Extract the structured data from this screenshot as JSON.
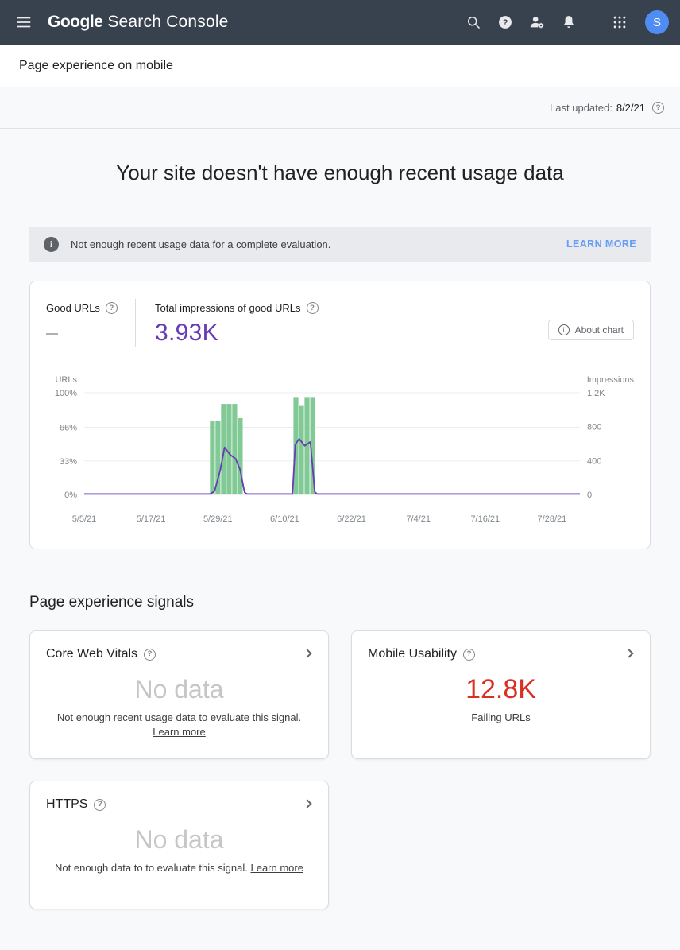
{
  "colors": {
    "header_bg": "#37424e",
    "link_blue": "#669df6",
    "impressions_purple": "#673ab7",
    "bar_green": "#81c995",
    "failing_red": "#d93025",
    "no_data_gray": "#c4c7c5"
  },
  "header": {
    "logo_google": "Google",
    "logo_product": "Search Console",
    "avatar_letter": "S",
    "icons": [
      "menu-icon",
      "search-icon",
      "help-icon",
      "user-settings-icon",
      "notifications-icon",
      "apps-grid-icon"
    ]
  },
  "subheader": {
    "title": "Page experience on mobile"
  },
  "updated": {
    "label": "Last updated:",
    "value": "8/2/21"
  },
  "main_heading": "Your site doesn't have enough recent usage data",
  "banner": {
    "message": "Not enough recent usage data for a complete evaluation.",
    "action_label": "LEARN MORE"
  },
  "chart_card": {
    "good_urls_label": "Good URLs",
    "good_urls_value": "—",
    "impressions_label": "Total impressions of good URLs",
    "impressions_value": "3.93K",
    "about_chart_label": "About chart"
  },
  "chart_data": {
    "type": "bar+line",
    "title": "Good URLs % and impressions over time",
    "x_range_days": [
      0,
      89
    ],
    "x_tick_days": [
      0,
      12,
      24,
      36,
      48,
      60,
      72,
      84
    ],
    "x_tick_labels": [
      "5/5/21",
      "5/17/21",
      "5/29/21",
      "6/10/21",
      "6/22/21",
      "7/4/21",
      "7/16/21",
      "7/28/21"
    ],
    "left_axis": {
      "label": "URLs",
      "range": [
        0,
        100
      ],
      "ticks": [
        {
          "pct": 100,
          "label": "100%"
        },
        {
          "pct": 66,
          "label": "66%"
        },
        {
          "pct": 33,
          "label": "33%"
        },
        {
          "pct": 0,
          "label": "0%"
        }
      ]
    },
    "right_axis": {
      "label": "Impressions",
      "range": [
        0,
        1200
      ],
      "ticks": [
        {
          "value": 1200,
          "label": "1.2K"
        },
        {
          "value": 800,
          "label": "800"
        },
        {
          "value": 400,
          "label": "400"
        },
        {
          "value": 0,
          "label": "0"
        }
      ]
    },
    "bars": {
      "name": "Good URLs %",
      "color": "#81c995",
      "points": [
        {
          "day": 23,
          "pct": 72
        },
        {
          "day": 24,
          "pct": 72
        },
        {
          "day": 25,
          "pct": 89
        },
        {
          "day": 26,
          "pct": 89
        },
        {
          "day": 27,
          "pct": 89
        },
        {
          "day": 28,
          "pct": 75
        },
        {
          "day": 38,
          "pct": 95
        },
        {
          "day": 39,
          "pct": 87
        },
        {
          "day": 40,
          "pct": 95
        },
        {
          "day": 41,
          "pct": 95
        }
      ]
    },
    "line": {
      "name": "Impressions",
      "color": "#673ab7",
      "points": [
        {
          "day": 0,
          "value": 6
        },
        {
          "day": 22.6,
          "value": 6
        },
        {
          "day": 23.4,
          "value": 40
        },
        {
          "day": 24.4,
          "value": 280
        },
        {
          "day": 25.2,
          "value": 555
        },
        {
          "day": 26.2,
          "value": 470
        },
        {
          "day": 27.2,
          "value": 420
        },
        {
          "day": 28,
          "value": 290
        },
        {
          "day": 28.8,
          "value": 25
        },
        {
          "day": 29.2,
          "value": 6
        },
        {
          "day": 37.4,
          "value": 6
        },
        {
          "day": 37.9,
          "value": 590
        },
        {
          "day": 38.6,
          "value": 655
        },
        {
          "day": 39.6,
          "value": 575
        },
        {
          "day": 40.6,
          "value": 620
        },
        {
          "day": 41.4,
          "value": 30
        },
        {
          "day": 41.8,
          "value": 6
        },
        {
          "day": 89,
          "value": 6
        }
      ]
    },
    "grid": true,
    "legend": "none"
  },
  "signals": {
    "heading": "Page experience signals",
    "cards": [
      {
        "title": "Core Web Vitals",
        "value": "No data",
        "value_color": "#c4c7c5",
        "description": "Not enough recent usage data to evaluate this signal.",
        "link_label": "Learn more"
      },
      {
        "title": "Mobile Usability",
        "value": "12.8K",
        "value_color": "#d93025",
        "description": "Failing URLs"
      },
      {
        "title": "HTTPS",
        "value": "No data",
        "value_color": "#c4c7c5",
        "description": "Not enough data to to evaluate this signal.",
        "link_label": "Learn more"
      }
    ]
  }
}
